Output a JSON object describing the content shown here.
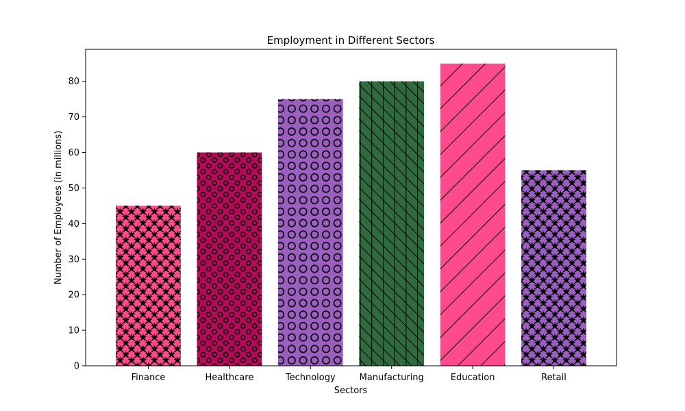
{
  "chart_data": {
    "type": "bar",
    "title": "Employment in Different Sectors",
    "xlabel": "Sectors",
    "ylabel": "Number of Employees (in millions)",
    "categories": [
      "Finance",
      "Healthcare",
      "Technology",
      "Manufacturing",
      "Education",
      "Retail"
    ],
    "values": [
      45,
      60,
      75,
      80,
      85,
      55
    ],
    "ylim": [
      0,
      89
    ],
    "yticks": [
      0,
      10,
      20,
      30,
      40,
      50,
      60,
      70,
      80
    ],
    "grid": false,
    "legend": "none",
    "bar_colors": [
      "#ff4a8d",
      "#b5095a",
      "#9b5fc0",
      "#2f6b3f",
      "#ff4a8d",
      "#9b5fc0"
    ],
    "bar_hatches": [
      "x-stars",
      "small-circles",
      "large-circles",
      "grid-backslash",
      "slash",
      "x-stars"
    ]
  }
}
